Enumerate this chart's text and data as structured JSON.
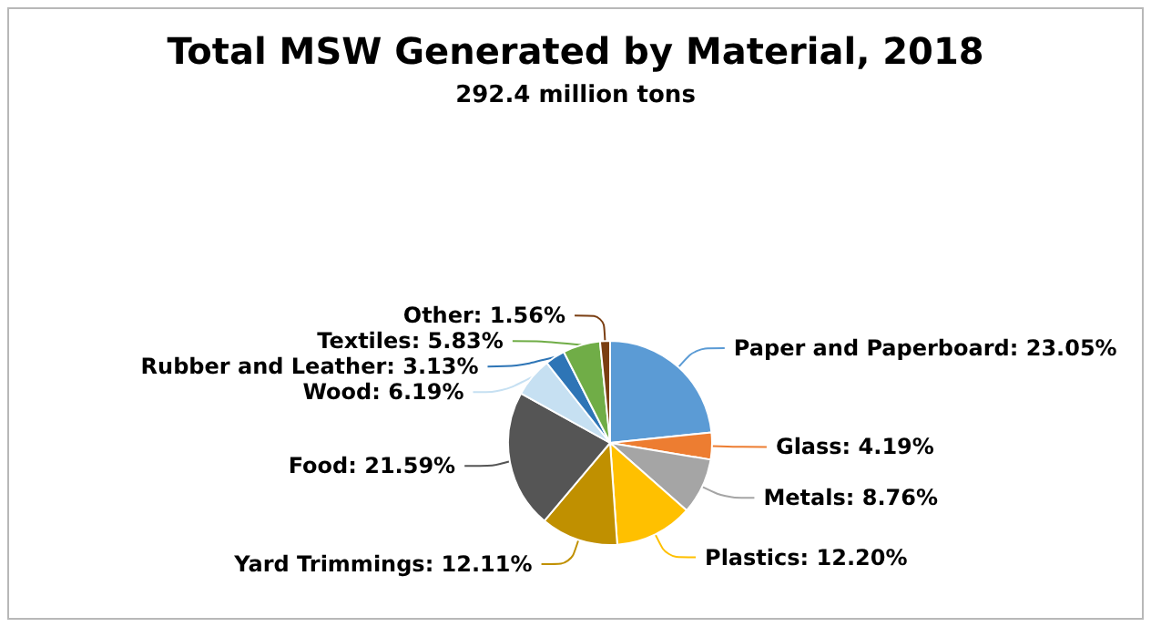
{
  "chart_data": {
    "type": "pie",
    "title": "Total MSW Generated by Material, 2018",
    "subtitle": "292.4 million tons",
    "categories": [
      "Paper and Paperboard",
      "Glass",
      "Metals",
      "Plastics",
      "Yard Trimmings",
      "Food",
      "Wood",
      "Rubber and Leather",
      "Textiles",
      "Other"
    ],
    "values": [
      23.05,
      4.19,
      8.76,
      12.2,
      12.11,
      21.59,
      6.19,
      3.13,
      5.83,
      1.56
    ],
    "value_labels": [
      "23.05%",
      "4.19%",
      "8.76%",
      "12.20%",
      "12.11%",
      "21.59%",
      "6.19%",
      "3.13%",
      "5.83%",
      "1.56%"
    ],
    "colors": [
      "#5b9bd5",
      "#ed7d31",
      "#a5a5a5",
      "#ffc000",
      "#c09000",
      "#555555",
      "#c6e0f2",
      "#2e75b6",
      "#70ad47",
      "#7a3e12"
    ],
    "legend": false
  }
}
